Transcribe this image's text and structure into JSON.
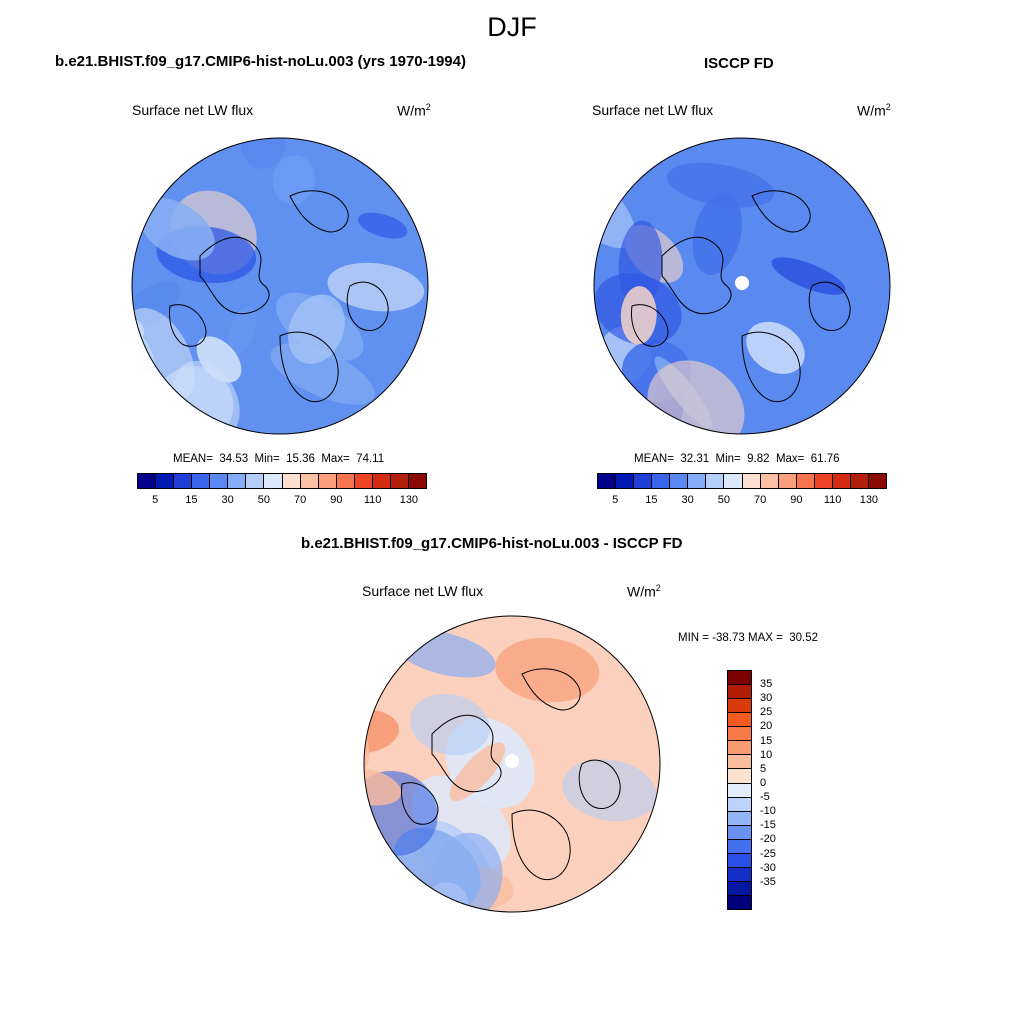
{
  "figure": {
    "season": "DJF"
  },
  "panels": [
    {
      "title": "b.e21.BHIST.f09_g17.CMIP6-hist-noLu.003 (yrs 1970-1994)",
      "variable": "Surface net LW flux",
      "units": "W/m",
      "units_exp": "2",
      "mean_label": "MEAN=",
      "mean": "34.53",
      "min_label": "Min=",
      "min": "15.36",
      "max_label": "Max=",
      "max": "74.11"
    },
    {
      "title": "ISCCP FD",
      "variable": "Surface net LW flux",
      "units": "W/m",
      "units_exp": "2",
      "mean_label": "MEAN=",
      "mean": "32.31",
      "min_label": "Min=",
      "min": "9.82",
      "max_label": "Max=",
      "max": "61.76"
    },
    {
      "title": "b.e21.BHIST.f09_g17.CMIP6-hist-noLu.003 - ISCCP FD",
      "variable": "Surface net LW flux",
      "units": "W/m",
      "units_exp": "2",
      "minmax_text": "MIN = -38.73 MAX =  30.52"
    }
  ],
  "colorbar_main": {
    "colors": [
      "#00008b",
      "#0019b3",
      "#1f3fd6",
      "#3a66ee",
      "#5a88f5",
      "#85acf7",
      "#b5cffa",
      "#dce9fb",
      "#fde0d2",
      "#fcc0a5",
      "#fb9e7c",
      "#f8744f",
      "#ee4526",
      "#d42b13",
      "#b41f0b",
      "#8b0a03"
    ],
    "tick_labels": [
      "5",
      "15",
      "30",
      "50",
      "70",
      "90",
      "110",
      "130"
    ]
  },
  "colorbar_diff": {
    "colors": [
      "#7a0002",
      "#b21e05",
      "#db3a0a",
      "#f45a1f",
      "#f77a47",
      "#fa9b70",
      "#fcbd9c",
      "#fde3cf",
      "#e3eefc",
      "#bcd3fa",
      "#93b4f6",
      "#6a92f2",
      "#4270ee",
      "#2850e6",
      "#1230c8",
      "#0516a2",
      "#00007a"
    ],
    "tick_labels": [
      "35",
      "30",
      "25",
      "20",
      "15",
      "10",
      "5",
      "0",
      "-5",
      "-10",
      "-15",
      "-20",
      "-25",
      "-30",
      "-35"
    ]
  },
  "maps": [
    {
      "pole_hole": false,
      "base": "#6191f0",
      "palette": [
        "#2a55e6",
        "#3d6ae8",
        "#5485ee",
        "#6a9af2",
        "#86aef4",
        "#a7c4f6",
        "#cfdff9",
        "#f7d8c9"
      ]
    },
    {
      "pole_hole": true,
      "base": "#5a89ef",
      "palette": [
        "#1d3fd9",
        "#2f55e2",
        "#4673ea",
        "#6591f0",
        "#80a8f3",
        "#a0bff6",
        "#c6d9f9",
        "#f4d5c8"
      ]
    },
    {
      "pole_hole": true,
      "base": "#fbd1bd",
      "palette": [
        "#e85a2f",
        "#f47c50",
        "#f89c76",
        "#fbbb9c",
        "#dde8fa",
        "#b6cdf6",
        "#8aaef1",
        "#3f6ae4"
      ]
    }
  ]
}
